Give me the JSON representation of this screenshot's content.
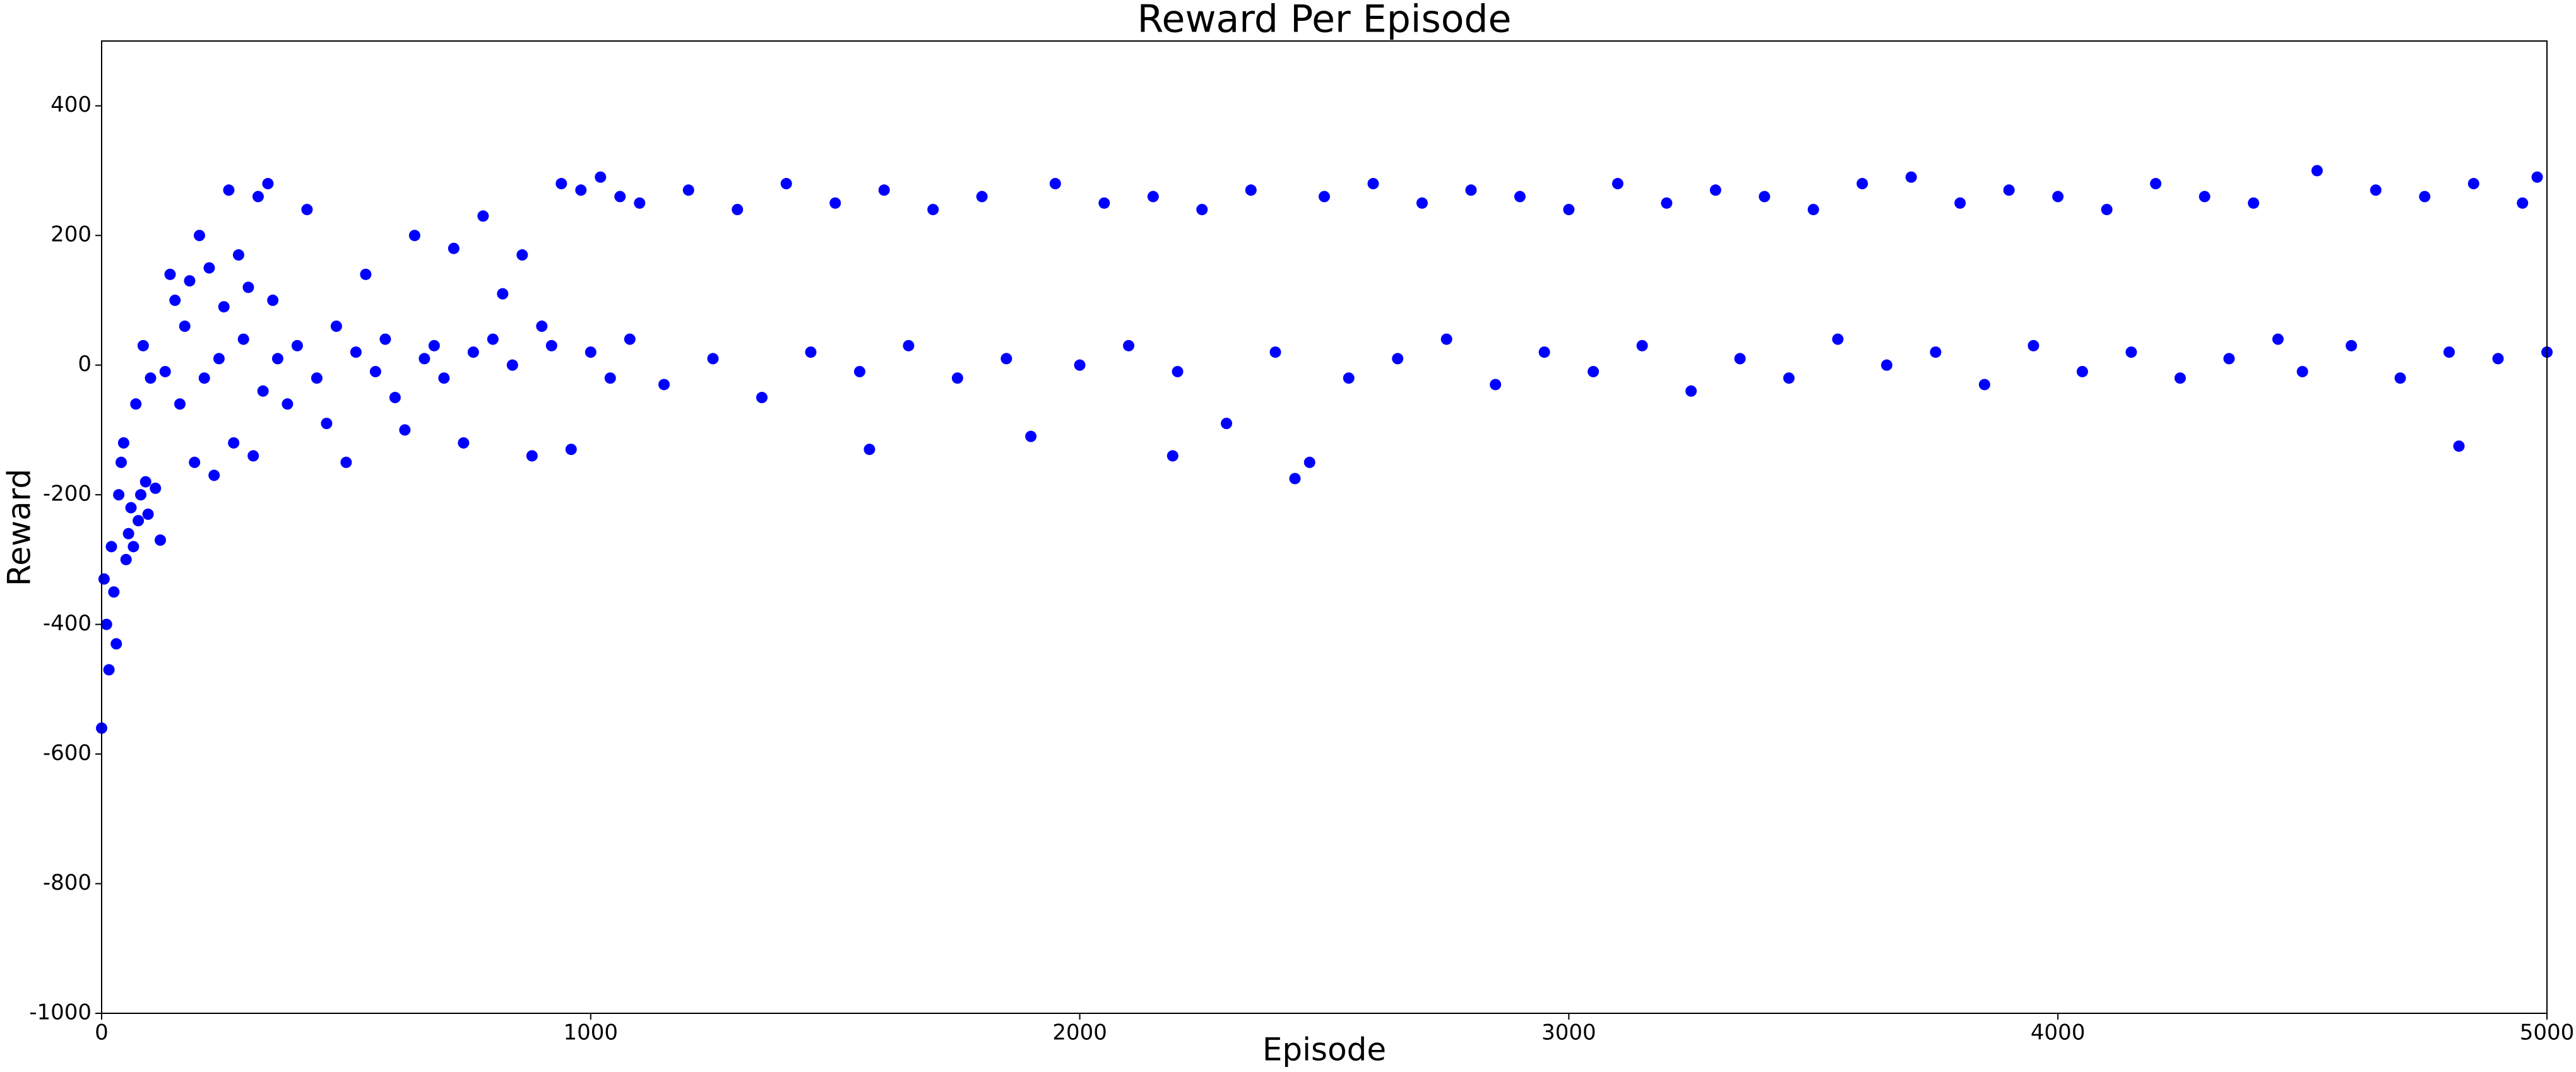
{
  "chart_data": {
    "type": "scatter",
    "title": "Reward Per Episode",
    "x_label": "Episode",
    "y_label": "Reward",
    "color": "#0000ff",
    "xlim": [
      0,
      5000
    ],
    "ylim": [
      -1000,
      500
    ],
    "xticks": [
      0,
      1000,
      2000,
      3000,
      4000,
      5000
    ],
    "yticks": [
      -1000,
      -800,
      -600,
      -400,
      -200,
      0,
      200,
      400
    ],
    "x": [
      0,
      5,
      10,
      15,
      20,
      25,
      30,
      35,
      40,
      45,
      50,
      55,
      60,
      65,
      70,
      75,
      80,
      85,
      90,
      95,
      100,
      110,
      120,
      130,
      140,
      150,
      160,
      170,
      180,
      190,
      200,
      210,
      220,
      230,
      240,
      250,
      260,
      270,
      280,
      290,
      300,
      310,
      320,
      330,
      340,
      350,
      360,
      380,
      400,
      420,
      440,
      460,
      480,
      500,
      520,
      540,
      560,
      580,
      600,
      620,
      640,
      660,
      680,
      700,
      720,
      740,
      760,
      780,
      800,
      820,
      840,
      860,
      880,
      900,
      920,
      940,
      960,
      980,
      1000,
      1020,
      1040,
      1060,
      1080,
      1100,
      1150,
      1200,
      1250,
      1300,
      1350,
      1400,
      1450,
      1500,
      1550,
      1570,
      1600,
      1650,
      1700,
      1750,
      1800,
      1850,
      1900,
      1950,
      2000,
      2050,
      2100,
      2150,
      2190,
      2200,
      2250,
      2300,
      2350,
      2400,
      2440,
      2470,
      2500,
      2550,
      2600,
      2650,
      2700,
      2750,
      2800,
      2850,
      2900,
      2950,
      3000,
      3050,
      3100,
      3150,
      3200,
      3250,
      3300,
      3350,
      3400,
      3450,
      3500,
      3550,
      3600,
      3650,
      3700,
      3750,
      3800,
      3850,
      3900,
      3950,
      4000,
      4050,
      4100,
      4150,
      4200,
      4250,
      4300,
      4350,
      4400,
      4450,
      4500,
      4530,
      4600,
      4650,
      4700,
      4750,
      4800,
      4820,
      4850,
      4900,
      4950,
      4980,
      5000
    ],
    "values": [
      -560,
      -330,
      -400,
      -470,
      -280,
      -350,
      -430,
      -200,
      -150,
      -120,
      -300,
      -260,
      -220,
      -280,
      -60,
      -240,
      -200,
      30,
      -180,
      -230,
      -20,
      -190,
      -270,
      -10,
      140,
      100,
      -60,
      60,
      130,
      -150,
      200,
      -20,
      150,
      -170,
      10,
      90,
      270,
      -120,
      170,
      40,
      120,
      -140,
      260,
      -40,
      280,
      100,
      10,
      -60,
      30,
      240,
      -20,
      -90,
      60,
      -150,
      20,
      140,
      -10,
      40,
      -50,
      -100,
      200,
      10,
      30,
      -20,
      180,
      -120,
      20,
      230,
      40,
      110,
      0,
      170,
      -140,
      60,
      30,
      280,
      -130,
      270,
      20,
      290,
      -20,
      260,
      40,
      250,
      -30,
      270,
      10,
      240,
      -50,
      280,
      20,
      250,
      -10,
      -130,
      270,
      30,
      240,
      -20,
      260,
      10,
      -110,
      280,
      0,
      250,
      30,
      260,
      -140,
      -10,
      240,
      -90,
      270,
      20,
      -175,
      -150,
      260,
      -20,
      280,
      10,
      250,
      40,
      270,
      -30,
      260,
      20,
      240,
      -10,
      280,
      30,
      250,
      -40,
      270,
      10,
      260,
      -20,
      240,
      40,
      280,
      0,
      290,
      20,
      250,
      -30,
      270,
      30,
      260,
      -10,
      240,
      20,
      280,
      -20,
      260,
      10,
      250,
      40,
      -10,
      300,
      30,
      270,
      -20,
      260,
      20,
      -125,
      280,
      10,
      250,
      290,
      20
    ]
  }
}
